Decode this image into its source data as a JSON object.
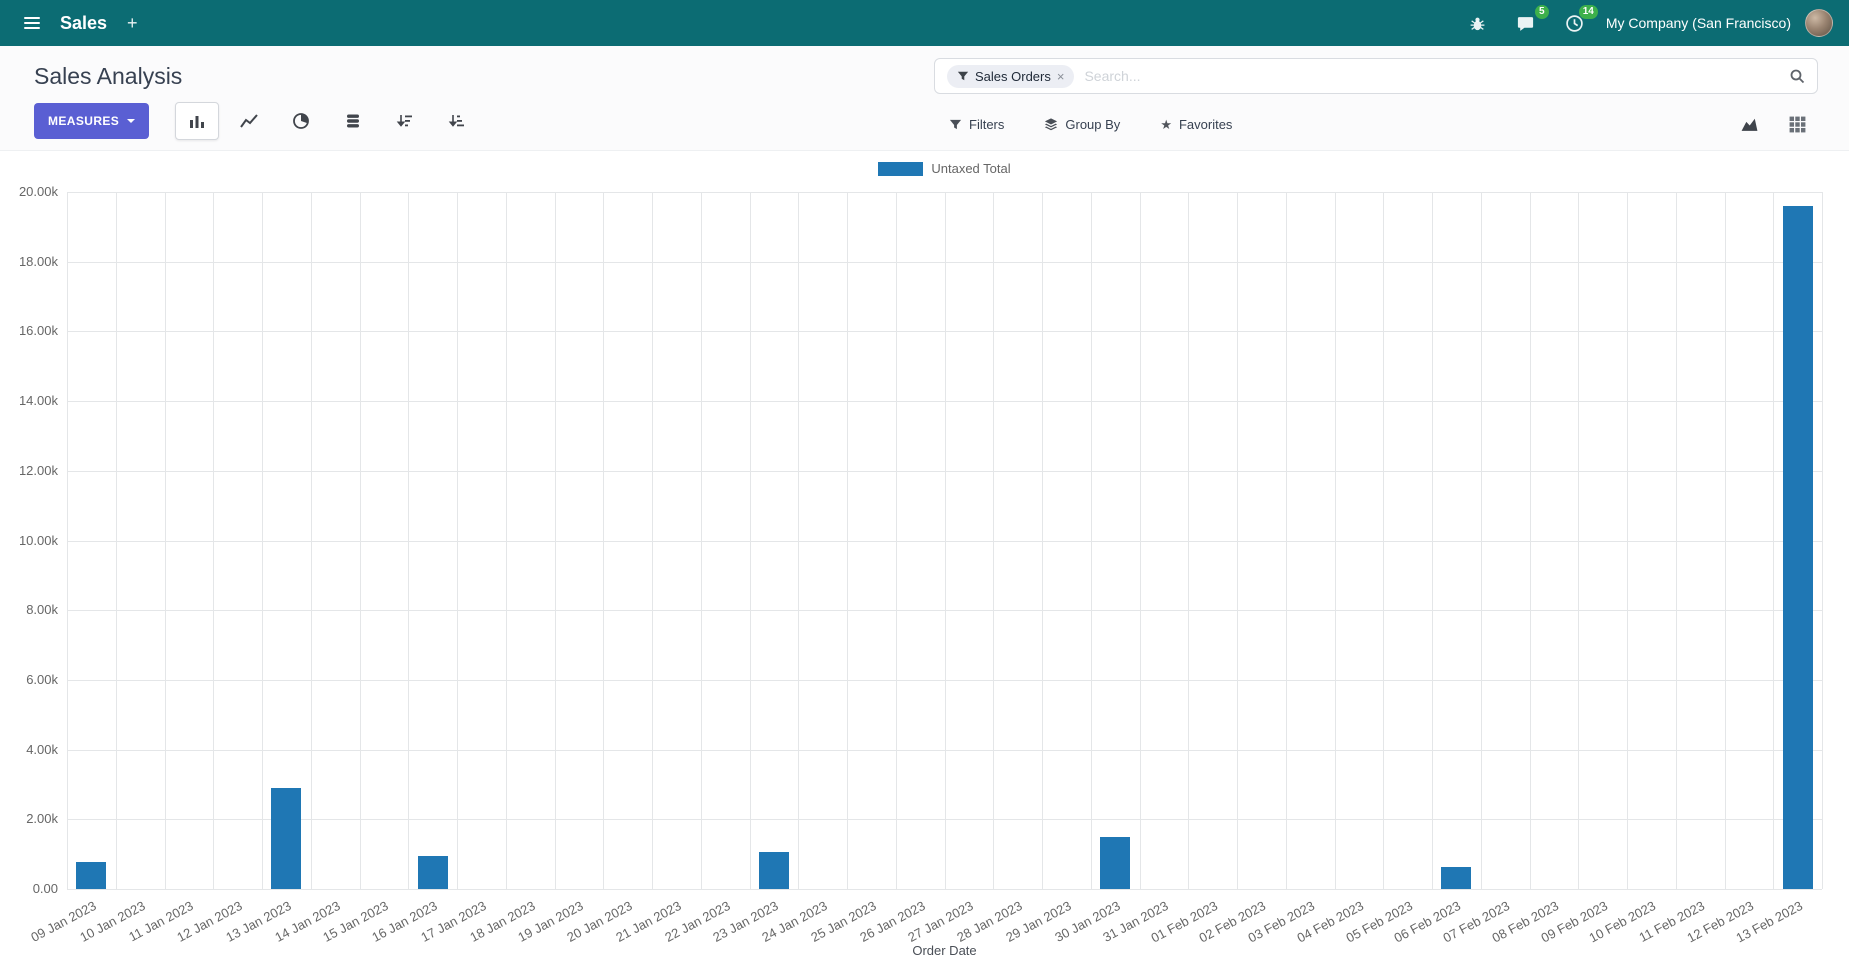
{
  "navbar": {
    "app_name": "Sales",
    "new_button": "+",
    "company": "My Company (San Francisco)",
    "messages_badge": "5",
    "activities_badge": "14",
    "color": "#0c6c73",
    "badge_color": "#3db04b"
  },
  "control_panel": {
    "title": "Sales Analysis",
    "measures_button": "MEASURES",
    "measures_color": "#5a5fd3",
    "search": {
      "facet_label": "Sales Orders",
      "facet_remove": "×",
      "placeholder": "Search..."
    },
    "filters": "Filters",
    "group_by": "Group By",
    "favorites": "Favorites",
    "favorites_star": "★"
  },
  "chart_data": {
    "type": "bar",
    "title": "",
    "legend": [
      "Untaxed Total"
    ],
    "legend_position": "top",
    "grid": true,
    "xlabel": "Order Date",
    "ylabel": "",
    "ylim": [
      0,
      20000
    ],
    "ytick_labels": [
      "0.00",
      "2.00k",
      "4.00k",
      "6.00k",
      "8.00k",
      "10.00k",
      "12.00k",
      "14.00k",
      "16.00k",
      "18.00k",
      "20.00k"
    ],
    "categories": [
      "09 Jan 2023",
      "10 Jan 2023",
      "11 Jan 2023",
      "12 Jan 2023",
      "13 Jan 2023",
      "14 Jan 2023",
      "15 Jan 2023",
      "16 Jan 2023",
      "17 Jan 2023",
      "18 Jan 2023",
      "19 Jan 2023",
      "20 Jan 2023",
      "21 Jan 2023",
      "22 Jan 2023",
      "23 Jan 2023",
      "24 Jan 2023",
      "25 Jan 2023",
      "26 Jan 2023",
      "27 Jan 2023",
      "28 Jan 2023",
      "29 Jan 2023",
      "30 Jan 2023",
      "31 Jan 2023",
      "01 Feb 2023",
      "02 Feb 2023",
      "03 Feb 2023",
      "04 Feb 2023",
      "05 Feb 2023",
      "06 Feb 2023",
      "07 Feb 2023",
      "08 Feb 2023",
      "09 Feb 2023",
      "10 Feb 2023",
      "11 Feb 2023",
      "12 Feb 2023",
      "13 Feb 2023"
    ],
    "series": [
      {
        "name": "Untaxed Total",
        "color": "#1f77b4",
        "values": [
          780,
          0,
          0,
          0,
          2900,
          0,
          0,
          950,
          0,
          0,
          0,
          0,
          0,
          0,
          1050,
          0,
          0,
          0,
          0,
          0,
          0,
          1500,
          0,
          0,
          0,
          0,
          0,
          0,
          620,
          0,
          0,
          0,
          0,
          0,
          0,
          19600
        ]
      }
    ]
  }
}
